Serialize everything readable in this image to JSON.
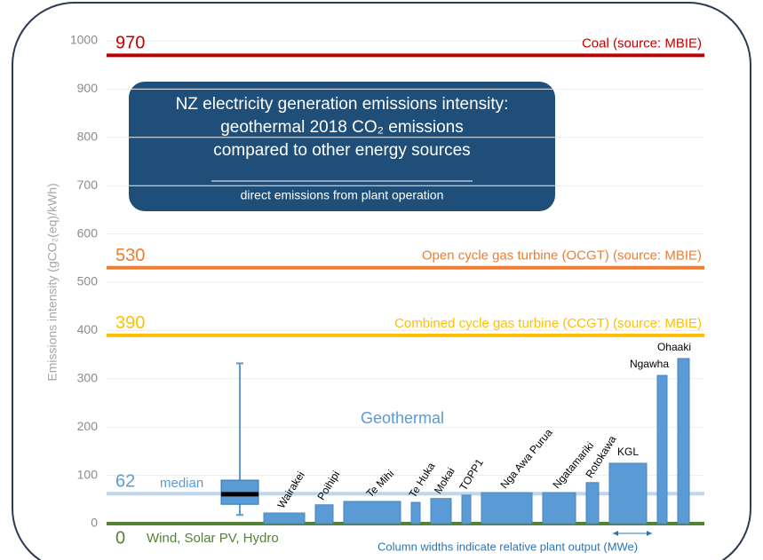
{
  "chart_data": {
    "type": "bar",
    "title": [
      "NZ electricity generation emissions intensity:",
      "geothermal 2018 CO₂ emissions",
      "compared to other energy sources"
    ],
    "subtitle": "direct emissions from plant operation",
    "y_label": "Emissions intensity (gCO₂(eq)/kWh)",
    "ylim": [
      0,
      1000
    ],
    "yticks": [
      0,
      100,
      200,
      300,
      400,
      500,
      600,
      700,
      800,
      900,
      1000
    ],
    "reference_lines": [
      {
        "value": 970,
        "name": "Coal (source: MBIE)",
        "color": "#c00000"
      },
      {
        "value": 530,
        "name": "Open cycle gas turbine (OCGT) (source: MBIE)",
        "color": "#ed7d31"
      },
      {
        "value": 390,
        "name": "Combined cycle gas turbine (CCGT) (source: MBIE)",
        "color": "#ffc000"
      },
      {
        "value": 62,
        "name": "median",
        "color": "#bdd7ee"
      },
      {
        "value": 0,
        "name": "Wind, Solar PV, Hydro",
        "color": "#548235"
      }
    ],
    "group_label": "Geothermal",
    "box": {
      "min": 18,
      "q1": 40,
      "median": 61,
      "q3": 90,
      "max": 332,
      "color": "#5b9bd5"
    },
    "categories": [
      "Wairakei",
      "Poihipi",
      "Te Mihi",
      "Te Huka",
      "Mokai",
      "TOPP1",
      "Nga Awa Purua",
      "Ngatamariki",
      "Rotokawa",
      "KGL",
      "Ngawha",
      "Ohaaki"
    ],
    "values": [
      22,
      39,
      46,
      44,
      52,
      59,
      64,
      64,
      85,
      125,
      307,
      342
    ],
    "relative_output": [
      46,
      20,
      64,
      10,
      23,
      10,
      57,
      37,
      14,
      42,
      11,
      13
    ],
    "color": "#5b9bd5",
    "width_note": "Column widths indicate relative plant output (MWe)",
    "grid": true
  }
}
